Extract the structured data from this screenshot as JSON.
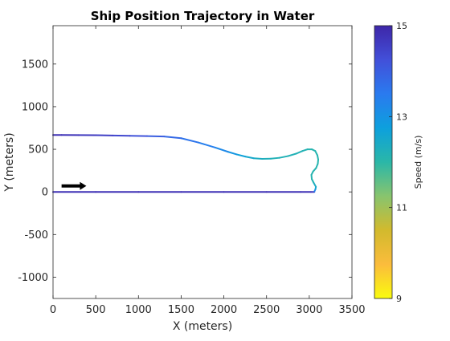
{
  "chart_data": {
    "type": "line",
    "title": "Ship Position Trajectory in Water",
    "xlabel": "X (meters)",
    "ylabel": "Y (meters)",
    "xlim": [
      0,
      3500
    ],
    "ylim": [
      -1250,
      1950
    ],
    "xticks": [
      0,
      500,
      1000,
      1500,
      2000,
      2500,
      3000,
      3500
    ],
    "yticks": [
      -1000,
      -500,
      0,
      500,
      1000,
      1500
    ],
    "grid": false,
    "colorbar": {
      "label": "Speed  (m/s)",
      "range": [
        9,
        15
      ],
      "ticks": [
        9,
        11,
        13,
        15
      ],
      "colormap": [
        "#f9fb0e",
        "#fbbc3c",
        "#d2ba2d",
        "#88c46e",
        "#2ab7a8",
        "#0da0dd",
        "#2a7aef",
        "#4250d9",
        "#3e26a8"
      ]
    },
    "direction_arrow": {
      "from": [
        100,
        70
      ],
      "to": [
        390,
        70
      ],
      "color": "#000000"
    },
    "series": [
      {
        "x": [
          0,
          500,
          1000,
          1500,
          2000,
          2500,
          2900,
          3020,
          3060
        ],
        "y": [
          0,
          0,
          0,
          0,
          0,
          0,
          0,
          0,
          0
        ],
        "speed": [
          14.8,
          14.8,
          14.8,
          14.8,
          14.8,
          14.8,
          14.8,
          14.8,
          14.6
        ]
      },
      {
        "x": [
          3060,
          3072,
          3078,
          3050,
          3030,
          3025,
          3045,
          3080,
          3100,
          3105,
          3095,
          3070,
          3030,
          2980,
          2920,
          2850,
          2750,
          2650,
          2550,
          2450,
          2350,
          2250,
          2150,
          2050,
          1900,
          1700,
          1500,
          1300,
          1100,
          900,
          700,
          500,
          300,
          100,
          0
        ],
        "y": [
          5,
          30,
          60,
          110,
          150,
          200,
          240,
          280,
          330,
          380,
          430,
          480,
          500,
          500,
          480,
          450,
          420,
          400,
          390,
          388,
          395,
          415,
          440,
          470,
          520,
          580,
          630,
          650,
          655,
          658,
          662,
          665,
          667,
          668,
          668
        ],
        "speed": [
          13.8,
          12.9,
          12.5,
          12.2,
          12.1,
          12.1,
          12.1,
          12.1,
          12.1,
          12.1,
          12.1,
          12.1,
          12.1,
          12.1,
          12.2,
          12.2,
          12.2,
          12.2,
          12.2,
          12.3,
          12.4,
          12.6,
          12.8,
          13.1,
          13.3,
          13.5,
          13.7,
          13.9,
          14.1,
          14.3,
          14.5,
          14.6,
          14.7,
          14.8,
          14.8
        ]
      }
    ]
  }
}
